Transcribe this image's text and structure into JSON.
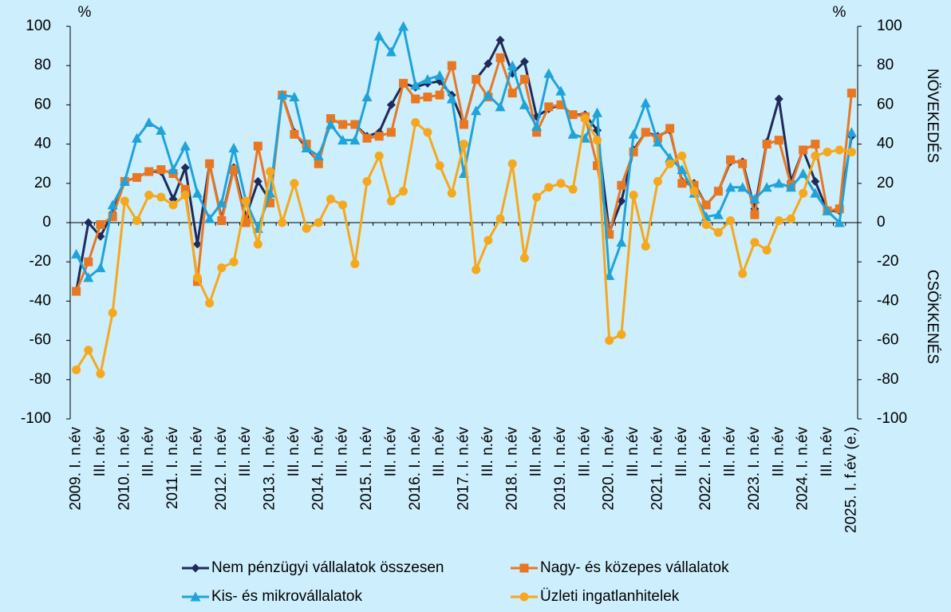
{
  "chart_data": {
    "type": "line",
    "annotations": {
      "left_unit": "%",
      "right_unit": "%",
      "up": "NÖVEKEDÉS",
      "down": "CSÖKKENÉS"
    },
    "categories": [
      "2009. I. n.év",
      null,
      "III. n.év",
      null,
      "2010. I. n.év",
      null,
      "III. n.év",
      null,
      "2011. I. n.év",
      null,
      "III. n.év",
      null,
      "2012. I. n.év",
      null,
      "III. n.év",
      null,
      "2013. I. n.év",
      null,
      "III. n.év",
      null,
      "2014. I. n.év",
      null,
      "III. n.év",
      null,
      "2015. I. n.év",
      null,
      "III. n.év",
      null,
      "2016. I. n.év",
      null,
      "III. n.év",
      null,
      "2017. I. n.év",
      null,
      "III. n.év",
      null,
      "2018. I. n.év",
      null,
      "III. n.év",
      null,
      "2019. I. n.év",
      null,
      "III. n.év",
      null,
      "2020. I. n.év",
      null,
      "III. n.év",
      null,
      "2021. I. n.év",
      null,
      "III. n.év",
      null,
      "2022. I. n.év",
      null,
      "III. n.év",
      null,
      "2023. I. n.év",
      null,
      "III. n.év",
      null,
      "2024. I. n.év",
      null,
      "III. n.év",
      null,
      "2025. I. f.év (e.)"
    ],
    "series": [
      {
        "name": "Nem pénzügyi vállalatok összesen",
        "color": "#1f2a5a",
        "marker": "diamond",
        "values": [
          -35,
          0,
          -7,
          5,
          21,
          23,
          26,
          26,
          12,
          28,
          -11,
          30,
          2,
          28,
          3,
          21,
          11,
          65,
          46,
          38,
          31,
          53,
          50,
          50,
          44,
          46,
          60,
          71,
          69,
          71,
          72,
          65,
          50,
          73,
          81,
          93,
          76,
          82,
          54,
          58,
          60,
          55,
          55,
          47,
          -5,
          11,
          37,
          46,
          44,
          47,
          21,
          20,
          9,
          16,
          31,
          31,
          7,
          41,
          63,
          21,
          37,
          21,
          6,
          6,
          44
        ]
      },
      {
        "name": "Nagy- és közepes vállalatok",
        "color": "#e87722",
        "marker": "square",
        "values": [
          -35,
          -20,
          -1,
          3,
          21,
          23,
          26,
          27,
          25,
          17,
          -30,
          30,
          1,
          27,
          0,
          39,
          10,
          65,
          45,
          40,
          30,
          53,
          50,
          50,
          43,
          44,
          46,
          71,
          63,
          64,
          65,
          80,
          50,
          73,
          64,
          84,
          66,
          73,
          46,
          59,
          60,
          55,
          54,
          29,
          -6,
          19,
          36,
          46,
          43,
          48,
          20,
          19,
          9,
          16,
          32,
          30,
          4,
          40,
          42,
          19,
          37,
          40,
          6,
          7,
          66
        ]
      },
      {
        "name": "Kis- és mikrovállalatok",
        "color": "#1fa3d9",
        "marker": "triangle",
        "values": [
          -16,
          -28,
          -23,
          9,
          21,
          43,
          51,
          47,
          27,
          39,
          15,
          2,
          10,
          38,
          11,
          -3,
          15,
          65,
          64,
          38,
          34,
          50,
          42,
          42,
          64,
          95,
          87,
          100,
          70,
          73,
          75,
          63,
          25,
          57,
          65,
          59,
          80,
          60,
          49,
          76,
          67,
          45,
          43,
          56,
          -27,
          -10,
          45,
          61,
          41,
          33,
          27,
          15,
          3,
          4,
          18,
          18,
          12,
          18,
          20,
          18,
          25,
          15,
          6,
          0,
          46
        ]
      },
      {
        "name": "Üzleti ingatlanhitelek",
        "color": "#f5a81c",
        "marker": "circle",
        "values": [
          -75,
          -65,
          -77,
          -46,
          11,
          1,
          14,
          13,
          9,
          14,
          -28,
          -41,
          -23,
          -20,
          11,
          -11,
          26,
          0,
          20,
          -3,
          0,
          12,
          9,
          -21,
          21,
          34,
          11,
          16,
          51,
          46,
          29,
          15,
          40,
          -24,
          -9,
          2,
          30,
          -18,
          13,
          18,
          20,
          17,
          53,
          42,
          -60,
          -57,
          14,
          -12,
          21,
          30,
          34,
          16,
          -1,
          -5,
          1,
          -26,
          -10,
          -14,
          1,
          2,
          15,
          34,
          36,
          37,
          36
        ]
      }
    ],
    "ylim": [
      -100,
      100
    ],
    "yticks": [
      -100,
      -80,
      -60,
      -40,
      -20,
      0,
      20,
      40,
      60,
      80,
      100
    ],
    "y2lim": [
      -100,
      100
    ],
    "y2ticks": [
      -100,
      -80,
      -60,
      -40,
      -20,
      0,
      20,
      40,
      60,
      80,
      100
    ],
    "grid": false
  }
}
